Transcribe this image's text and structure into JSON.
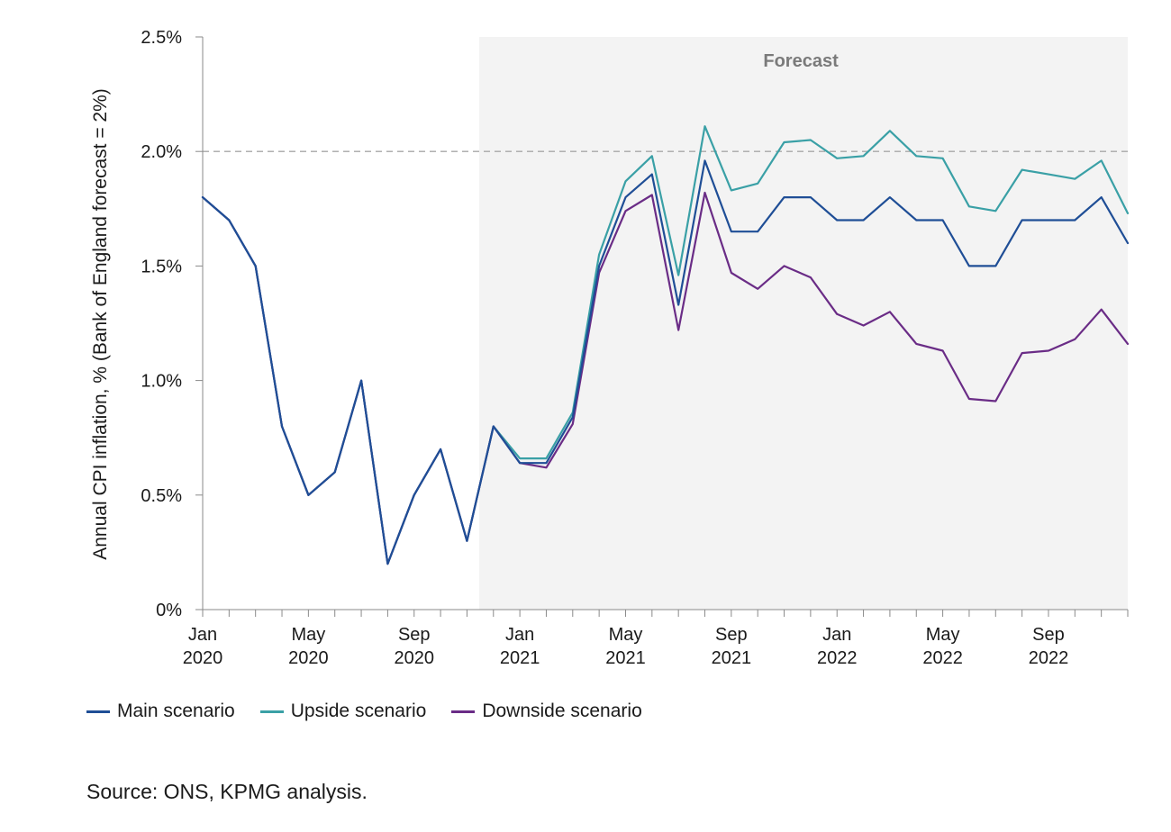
{
  "chart_data": {
    "type": "line",
    "ylabel": "Annual CPI inflation, % (Bank of England forecast = 2%)",
    "ylim": [
      0,
      2.5
    ],
    "yticks": [
      {
        "value": 0,
        "label": "0%"
      },
      {
        "value": 0.5,
        "label": "0.5%"
      },
      {
        "value": 1.0,
        "label": "1.0%"
      },
      {
        "value": 1.5,
        "label": "1.5%"
      },
      {
        "value": 2.0,
        "label": "2.0%"
      },
      {
        "value": 2.5,
        "label": "2.5%"
      }
    ],
    "x": [
      "2020-01",
      "2020-02",
      "2020-03",
      "2020-04",
      "2020-05",
      "2020-06",
      "2020-07",
      "2020-08",
      "2020-09",
      "2020-10",
      "2020-11",
      "2020-12",
      "2021-01",
      "2021-02",
      "2021-03",
      "2021-04",
      "2021-05",
      "2021-06",
      "2021-07",
      "2021-08",
      "2021-09",
      "2021-10",
      "2021-11",
      "2021-12",
      "2022-01",
      "2022-02",
      "2022-03",
      "2022-04",
      "2022-05",
      "2022-06",
      "2022-07",
      "2022-08",
      "2022-09",
      "2022-10",
      "2022-11",
      "2022-12"
    ],
    "xticks": [
      {
        "x": "2020-01",
        "line1": "Jan",
        "line2": "2020"
      },
      {
        "x": "2020-05",
        "line1": "May",
        "line2": "2020"
      },
      {
        "x": "2020-09",
        "line1": "Sep",
        "line2": "2020"
      },
      {
        "x": "2021-01",
        "line1": "Jan",
        "line2": "2021"
      },
      {
        "x": "2021-05",
        "line1": "May",
        "line2": "2021"
      },
      {
        "x": "2021-09",
        "line1": "Sep",
        "line2": "2021"
      },
      {
        "x": "2022-01",
        "line1": "Jan",
        "line2": "2022"
      },
      {
        "x": "2022-05",
        "line1": "May",
        "line2": "2022"
      },
      {
        "x": "2022-09",
        "line1": "Sep",
        "line2": "2022"
      }
    ],
    "forecast_region": {
      "label": "Forecast",
      "start": "2020-11-15",
      "end": "2022-12"
    },
    "reference_line": {
      "value": 2.0,
      "style": "dashed"
    },
    "grid": false,
    "legend_position": "bottom-left",
    "series": [
      {
        "name": "Main scenario",
        "color": "#1f4e96",
        "values": [
          1.8,
          1.7,
          1.5,
          0.8,
          0.5,
          0.6,
          1.0,
          0.2,
          0.5,
          0.7,
          0.3,
          0.8,
          0.64,
          0.64,
          0.84,
          1.5,
          1.8,
          1.9,
          1.33,
          1.96,
          1.65,
          1.65,
          1.8,
          1.8,
          1.7,
          1.7,
          1.8,
          1.7,
          1.7,
          1.5,
          1.5,
          1.7,
          1.7,
          1.7,
          1.8,
          1.6
        ]
      },
      {
        "name": "Upside scenario",
        "color": "#3aa0a6",
        "values": [
          1.8,
          1.7,
          1.5,
          0.8,
          0.5,
          0.6,
          1.0,
          0.2,
          0.5,
          0.7,
          0.3,
          0.8,
          0.66,
          0.66,
          0.86,
          1.55,
          1.87,
          1.98,
          1.46,
          2.11,
          1.83,
          1.86,
          2.04,
          2.05,
          1.97,
          1.98,
          2.09,
          1.98,
          1.97,
          1.76,
          1.74,
          1.92,
          1.9,
          1.88,
          1.96,
          1.73
        ]
      },
      {
        "name": "Downside scenario",
        "color": "#6a2c86",
        "values": [
          1.8,
          1.7,
          1.5,
          0.8,
          0.5,
          0.6,
          1.0,
          0.2,
          0.5,
          0.7,
          0.3,
          0.8,
          0.64,
          0.62,
          0.81,
          1.47,
          1.74,
          1.81,
          1.22,
          1.82,
          1.47,
          1.4,
          1.5,
          1.45,
          1.29,
          1.24,
          1.3,
          1.16,
          1.13,
          0.92,
          0.91,
          1.12,
          1.13,
          1.18,
          1.31,
          1.16
        ]
      }
    ]
  },
  "source": "Source: ONS, KPMG analysis."
}
